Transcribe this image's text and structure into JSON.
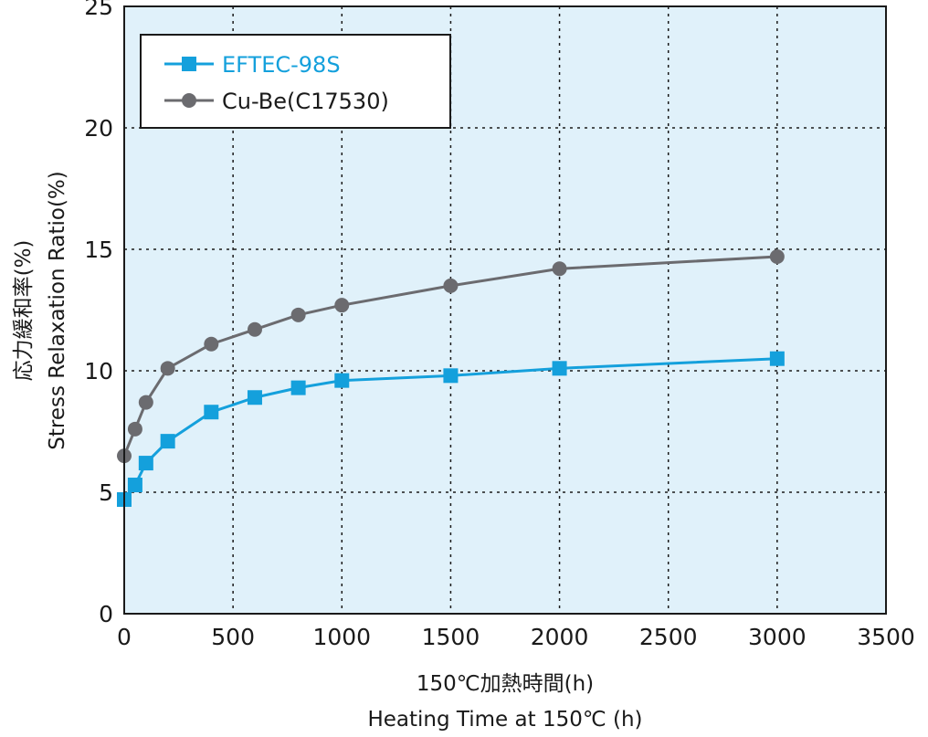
{
  "colors": {
    "plot_background": "#e0f1fa",
    "grid": "#1a1a1a",
    "frame": "#1a1a1a",
    "eftec": "#14a0dc",
    "cube": "#6b6b6f"
  },
  "chart_data": {
    "type": "line",
    "xlabel": [
      "150℃加熱時間(h)",
      "Heating Time at 150℃ (h)"
    ],
    "ylabel": [
      "応力緩和率(%)",
      "Stress Relaxation Ratio(%)"
    ],
    "xlim": [
      0,
      3500
    ],
    "ylim": [
      0,
      25
    ],
    "xticks": [
      0,
      500,
      1000,
      1500,
      2000,
      2500,
      3000,
      3500
    ],
    "yticks": [
      0,
      5,
      10,
      15,
      20,
      25
    ],
    "grid": true,
    "legend_position": "top-left",
    "series": [
      {
        "name": "EFTEC-98S",
        "marker": "square",
        "color": "#14a0dc",
        "x": [
          0,
          50,
          100,
          200,
          400,
          600,
          800,
          1000,
          1500,
          2000,
          3000
        ],
        "y": [
          4.7,
          5.3,
          6.2,
          7.1,
          8.3,
          8.9,
          9.3,
          9.6,
          9.8,
          10.1,
          10.5
        ]
      },
      {
        "name": "Cu-Be(C17530)",
        "marker": "circle",
        "color": "#6b6b6f",
        "x": [
          0,
          50,
          100,
          200,
          400,
          600,
          800,
          1000,
          1500,
          2000,
          3000
        ],
        "y": [
          6.5,
          7.6,
          8.7,
          10.1,
          11.1,
          11.7,
          12.3,
          12.7,
          13.5,
          14.2,
          14.7
        ]
      }
    ]
  }
}
